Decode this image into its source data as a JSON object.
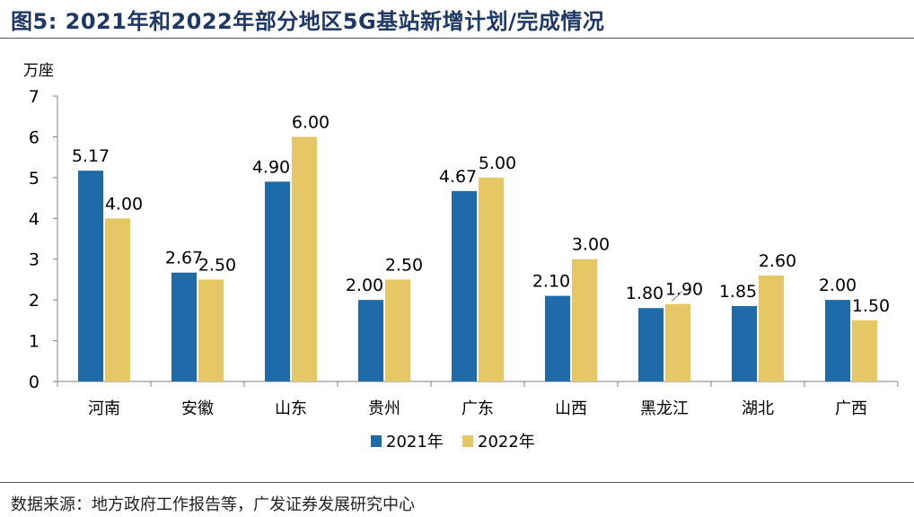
{
  "header": {
    "figure_label": "图5:",
    "title_text": "2021年和2022年部分地区5G基站新增计划/完成情况"
  },
  "footer": {
    "source": "数据来源：地方政府工作报告等，广发证券发展研究中心"
  },
  "colors": {
    "series_2021": "#1f6aa8",
    "series_2022": "#e6c766",
    "title": "#1f3864"
  },
  "chart_data": {
    "type": "bar",
    "title": "2021年和2022年部分地区5G基站新增计划/完成情况",
    "ylabel": "万座",
    "xlabel": "",
    "ylim": [
      0,
      7
    ],
    "yticks": [
      "0",
      "1",
      "2",
      "3",
      "4",
      "5",
      "6",
      "7"
    ],
    "categories": [
      "河南",
      "安徽",
      "山东",
      "贵州",
      "广东",
      "山西",
      "黑龙江",
      "湖北",
      "广西"
    ],
    "series": [
      {
        "name": "2021年",
        "values": [
          5.17,
          2.67,
          4.9,
          2.0,
          4.67,
          2.1,
          1.8,
          1.85,
          2.0
        ],
        "labels": [
          "5.17",
          "2.67",
          "4.90",
          "2.00",
          "4.67",
          "2.10",
          "1.80",
          "1.85",
          "2.00"
        ]
      },
      {
        "name": "2022年",
        "values": [
          4.0,
          2.5,
          6.0,
          2.5,
          5.0,
          3.0,
          1.9,
          2.6,
          1.5
        ],
        "labels": [
          "4.00",
          "2.50",
          "6.00",
          "2.50",
          "5.00",
          "3.00",
          "1.90",
          "2.60",
          "1.50"
        ]
      }
    ],
    "legend_position": "bottom-center",
    "grid": false
  }
}
